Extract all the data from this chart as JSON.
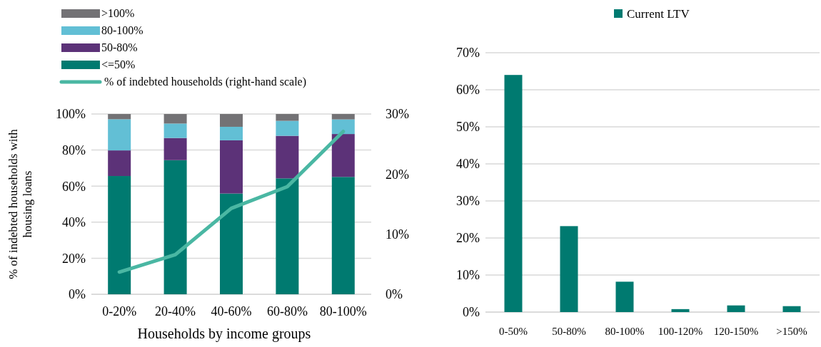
{
  "chart_data": [
    {
      "type": "bar",
      "stacked": true,
      "xlabel": "Households by income groups",
      "ylabel": "% of indebted households with housing loans",
      "categories": [
        "0-20%",
        "20-40%",
        "40-60%",
        "60-80%",
        "80-100%"
      ],
      "series": [
        {
          "name": "<=50%",
          "color": "#007a70",
          "values": [
            65.6,
            74.4,
            55.9,
            64.3,
            65.1
          ]
        },
        {
          "name": "50-80%",
          "color": "#5c3278",
          "values": [
            14.2,
            12.3,
            29.5,
            23.6,
            23.8
          ]
        },
        {
          "name": "80-100%",
          "color": "#62bfd5",
          "values": [
            17.3,
            8.0,
            7.5,
            8.3,
            8.1
          ]
        },
        {
          "name": ">100%",
          "color": "#737275",
          "values": [
            2.9,
            5.3,
            7.1,
            3.8,
            3.0
          ]
        },
        {
          "name": "% of indebted households (right-hand scale)",
          "type": "line",
          "axis": "y2",
          "color": "#4ab7a3",
          "values": [
            3.7,
            6.6,
            14.3,
            17.9,
            27.1
          ]
        }
      ],
      "ylim": [
        0,
        100
      ],
      "yticks": [
        {
          "value": 0,
          "label": "0%"
        },
        {
          "value": 20,
          "label": "20%"
        },
        {
          "value": 40,
          "label": "40%"
        },
        {
          "value": 60,
          "label": "60%"
        },
        {
          "value": 80,
          "label": "80%"
        },
        {
          "value": 100,
          "label": "100%"
        }
      ],
      "y2lim": [
        0,
        30
      ],
      "y2ticks": [
        {
          "value": 0,
          "label": "0%"
        },
        {
          "value": 10,
          "label": "10%"
        },
        {
          "value": 20,
          "label": "20%"
        },
        {
          "value": 30,
          "label": "30%"
        }
      ],
      "grid": "y",
      "legend": "top"
    },
    {
      "type": "bar",
      "categories": [
        "0-50%",
        "50-80%",
        "80-100%",
        "100-120%",
        "120-150%",
        ">150%"
      ],
      "series": [
        {
          "name": "Current LTV",
          "color": "#007a70",
          "values": [
            64.0,
            23.2,
            8.2,
            0.8,
            1.8,
            1.6
          ]
        }
      ],
      "ylim": [
        0,
        70
      ],
      "yticks": [
        {
          "value": 0,
          "label": "0%"
        },
        {
          "value": 10,
          "label": "10%"
        },
        {
          "value": 20,
          "label": "20%"
        },
        {
          "value": 30,
          "label": "30%"
        },
        {
          "value": 40,
          "label": "40%"
        },
        {
          "value": 50,
          "label": "50%"
        },
        {
          "value": 60,
          "label": "60%"
        },
        {
          "value": 70,
          "label": "70%"
        }
      ],
      "grid": "y",
      "legend": "top"
    }
  ]
}
